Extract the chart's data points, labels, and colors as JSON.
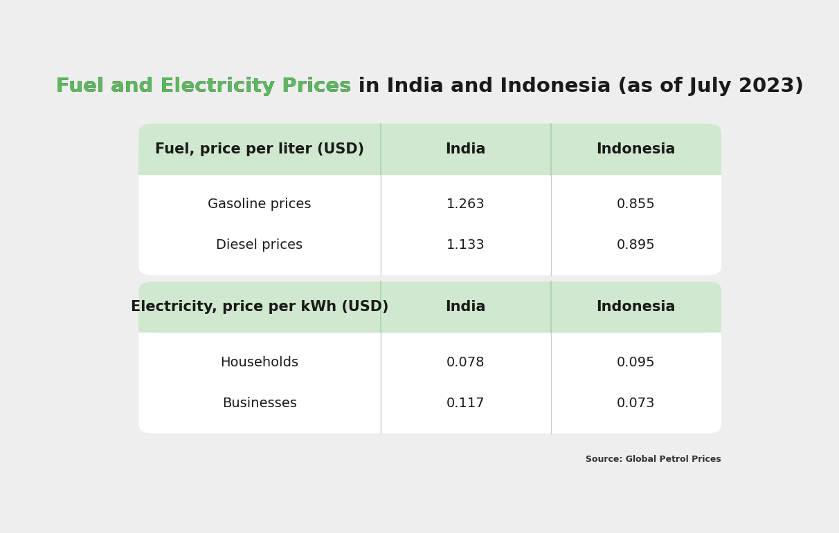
{
  "title_green": "Fuel and Electricity Prices",
  "title_black": " in India and Indonesia (as of July 2023)",
  "background_color": "#eeeeee",
  "table_bg_white": "#ffffff",
  "header_bg": "#cfe8cf",
  "source_text": "Source: Global Petrol Prices",
  "fuel_table": {
    "header": [
      "Fuel, price per liter (USD)",
      "India",
      "Indonesia"
    ],
    "rows": [
      [
        "Gasoline prices",
        "1.263",
        "0.855"
      ],
      [
        "Diesel prices",
        "1.133",
        "0.895"
      ]
    ]
  },
  "electricity_table": {
    "header": [
      "Electricity, price per kWh (USD)",
      "India",
      "Indonesia"
    ],
    "rows": [
      [
        "Households",
        "0.078",
        "0.095"
      ],
      [
        "Businesses",
        "0.117",
        "0.073"
      ]
    ]
  },
  "title_fontsize": 21,
  "header_fontsize": 15,
  "cell_fontsize": 14,
  "source_fontsize": 9
}
